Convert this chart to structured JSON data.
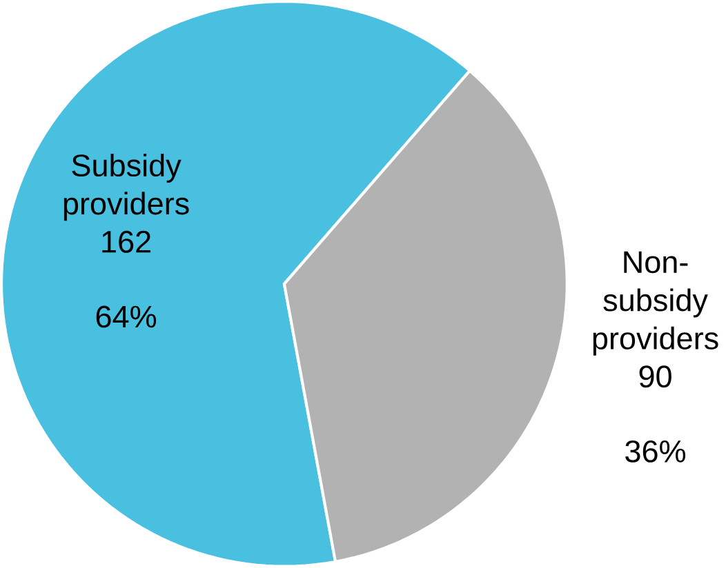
{
  "chart_data": {
    "type": "pie",
    "categories": [
      "Subsidy providers",
      "Non-subsidy providers"
    ],
    "values": [
      162,
      90
    ],
    "colors": [
      "#49c0e0",
      "#b2b2b2"
    ],
    "value_labels": [
      "162",
      "90"
    ],
    "annotations": [
      "64%",
      "36%"
    ]
  }
}
